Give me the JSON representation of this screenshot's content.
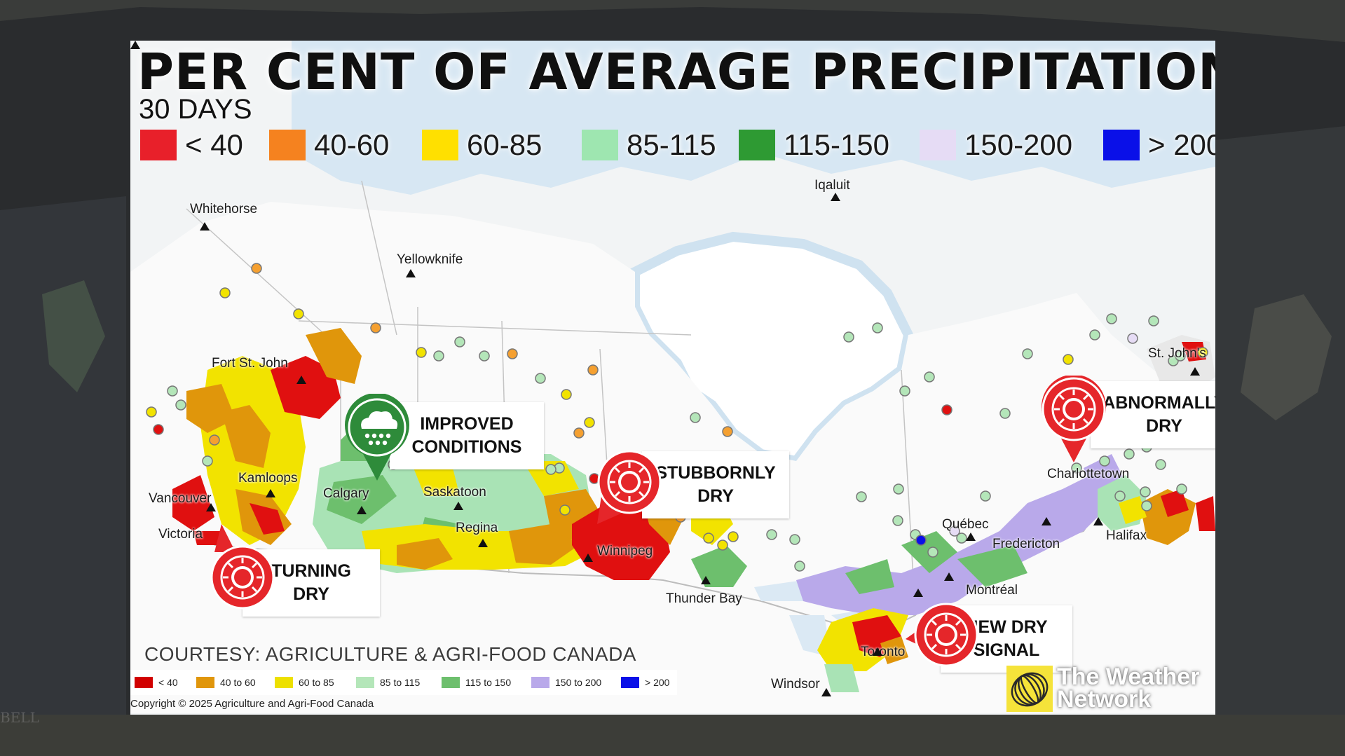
{
  "title": "PER CENT OF AVERAGE PRECIPITATION",
  "subtitle": "30 DAYS",
  "legend_top": [
    {
      "label": "< 40",
      "color": "#e8202a"
    },
    {
      "label": "40-60",
      "color": "#f5821f"
    },
    {
      "label": "60-85",
      "color": "#ffe000"
    },
    {
      "label": "85-115",
      "color": "#9ee6b0"
    },
    {
      "label": "115-150",
      "color": "#2e9a33"
    },
    {
      "label": "150-200",
      "color": "#e6dcf5"
    },
    {
      "label": "> 200",
      "color": "#0a10e8"
    }
  ],
  "cities": {
    "whitehorse": "Whitehorse",
    "yellowknife": "Yellowknife",
    "iqaluit": "Iqaluit",
    "fort_st_john": "Fort St. John",
    "kamloops": "Kamloops",
    "vancouver": "Vancouver",
    "victoria": "Victoria",
    "calgary": "Calgary",
    "saskatoon": "Saskatoon",
    "regina": "Regina",
    "winnipeg": "Winnipeg",
    "thunder_bay": "Thunder Bay",
    "quebec": "Québec",
    "montreal": "Montréal",
    "toronto": "Toronto",
    "windsor": "Windsor",
    "fredericton": "Fredericton",
    "halifax": "Halifax",
    "charlottetown": "Charlottetown",
    "st_johns": "St. John's"
  },
  "callouts": {
    "improved": {
      "line1": "IMPROVED",
      "line2": "CONDITIONS",
      "icon": "rain-cloud-icon",
      "color": "#2e8b3a"
    },
    "stubbornly_dry": {
      "line1": "STUBBORNLY",
      "line2": "DRY",
      "icon": "sun-icon",
      "color": "#e5262a"
    },
    "turning_dry": {
      "line1": "TURNING",
      "line2": "DRY",
      "icon": "sun-icon",
      "color": "#e5262a"
    },
    "abnormally_dry": {
      "line1": "ABNORMALLY",
      "line2": "DRY",
      "icon": "sun-icon",
      "color": "#e5262a"
    },
    "new_dry_signal": {
      "line1": "NEW DRY",
      "line2": "SIGNAL",
      "icon": "sun-icon",
      "color": "#e5262a"
    }
  },
  "courtesy": "COURTESY: AGRICULTURE & AGRI-FOOD CANADA",
  "legend_small": [
    {
      "label": "< 40",
      "color": "#d10000"
    },
    {
      "label": "40 to 60",
      "color": "#e0960b"
    },
    {
      "label": "60 to 85",
      "color": "#ede000"
    },
    {
      "label": "85 to 115",
      "color": "#b4e6b9"
    },
    {
      "label": "115 to 150",
      "color": "#6dbf6d"
    },
    {
      "label": "150 to 200",
      "color": "#b9a9ea"
    },
    {
      "label": "> 200",
      "color": "#0a10e8"
    }
  ],
  "copyright": "Copyright © 2025 Agriculture and Agri-Food Canada",
  "brand": {
    "line1": "The Weather",
    "line2": "Network"
  },
  "watermark": "BELL"
}
